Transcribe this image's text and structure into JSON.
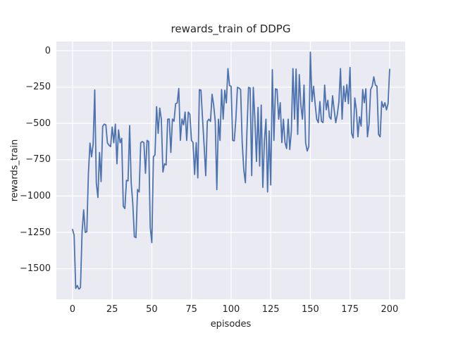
{
  "figure": {
    "title": "rewards_train of DDPG",
    "xlabel": "episodes",
    "ylabel": "rewards_train"
  },
  "colors": {
    "line": "#4c72b0",
    "axes_background": "#eaeaf2",
    "grid": "#ffffff",
    "figure_background": "#ffffff",
    "text": "#262626"
  },
  "chart_data": {
    "type": "line",
    "title": "rewards_train of DDPG",
    "xlabel": "episodes",
    "ylabel": "rewards_train",
    "legend": false,
    "grid": true,
    "style": "seaborn-darkgrid",
    "xlim": [
      -10.2,
      209.8
    ],
    "ylim": [
      -1710,
      63
    ],
    "x_ticks": [
      0,
      25,
      50,
      75,
      100,
      125,
      150,
      175,
      200
    ],
    "x_tick_labels": [
      "0",
      "25",
      "50",
      "75",
      "100",
      "125",
      "150",
      "175",
      "200"
    ],
    "y_ticks": [
      0,
      -250,
      -500,
      -750,
      -1000,
      -1250,
      -1500
    ],
    "y_tick_labels": [
      "0",
      "−250",
      "−500",
      "−750",
      "−1000",
      "−1250",
      "−1500"
    ],
    "series": [
      {
        "name": "rewards_train",
        "color": "#4c72b0",
        "x_start": 0,
        "x_step": 1,
        "values": [
          -1230,
          -1270,
          -1635,
          -1615,
          -1640,
          -1630,
          -1250,
          -1095,
          -1250,
          -1245,
          -845,
          -635,
          -730,
          -640,
          -270,
          -910,
          -1010,
          -700,
          -900,
          -520,
          -505,
          -510,
          -635,
          -650,
          -660,
          -525,
          -633,
          -505,
          -778,
          -545,
          -633,
          -603,
          -1070,
          -1086,
          -892,
          -895,
          -515,
          -910,
          -1053,
          -1280,
          -1286,
          -955,
          -972,
          -633,
          -625,
          -633,
          -843,
          -617,
          -625,
          -1215,
          -1320,
          -730,
          -715,
          -385,
          -568,
          -395,
          -471,
          -835,
          -778,
          -786,
          -471,
          -470,
          -700,
          -470,
          -485,
          -365,
          -360,
          -260,
          -617,
          -470,
          -510,
          -422,
          -617,
          -422,
          -438,
          -617,
          -632,
          -851,
          -633,
          -875,
          -268,
          -272,
          -471,
          -655,
          -860,
          -486,
          -471,
          -486,
          -300,
          -374,
          -486,
          -956,
          -471,
          -617,
          -267,
          -471,
          -272,
          -359,
          -123,
          -240,
          -245,
          -617,
          -620,
          -471,
          -252,
          -257,
          -267,
          -632,
          -820,
          -908,
          -550,
          -252,
          -257,
          -859,
          -252,
          -471,
          -762,
          -390,
          -794,
          -374,
          -940,
          -620,
          -471,
          -972,
          -552,
          -924,
          -131,
          -617,
          -262,
          -267,
          -471,
          -358,
          -632,
          -471,
          -632,
          -673,
          -471,
          -680,
          -552,
          -123,
          -471,
          -126,
          -576,
          -164,
          -374,
          -471,
          -236,
          -633,
          -690,
          -660,
          -10,
          -350,
          -245,
          -366,
          -471,
          -495,
          -350,
          -487,
          -494,
          -236,
          -406,
          -341,
          -455,
          -471,
          -310,
          -407,
          -495,
          -438,
          -350,
          -123,
          -471,
          -244,
          -350,
          -233,
          -364,
          -115,
          -568,
          -600,
          -325,
          -407,
          -592,
          -455,
          -519,
          -267,
          -358,
          -262,
          -592,
          -503,
          -267,
          -244,
          -180,
          -236,
          -244,
          -577,
          -592,
          -350,
          -389,
          -358,
          -407,
          -364,
          -128
        ]
      }
    ]
  }
}
